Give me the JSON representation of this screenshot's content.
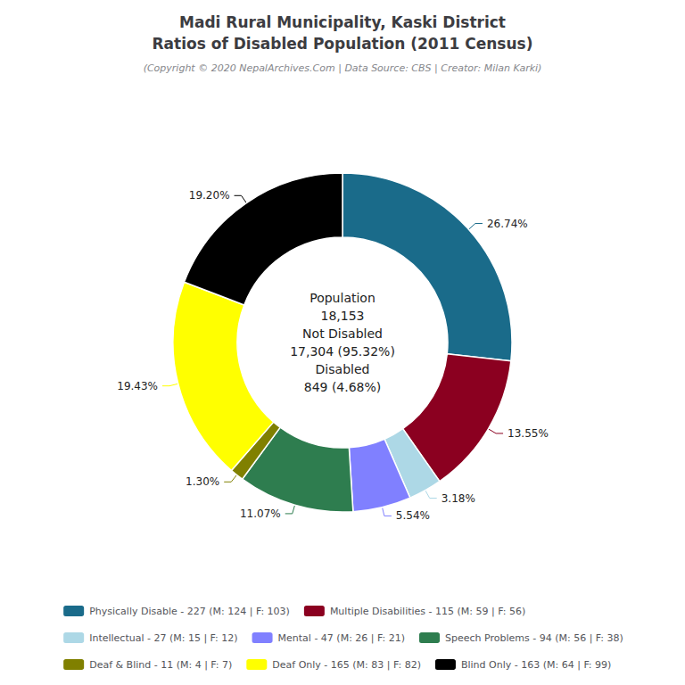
{
  "chart_data": {
    "type": "pie",
    "title": "Madi Rural Municipality, Kaski District\nRatios of Disabled Population (2011 Census)",
    "subtitle": "(Copyright © 2020 NepalArchives.Com | Data Source: CBS | Creator: Milan Karki)",
    "categories": [
      "Physically Disable - 227 (M: 124 | F: 103)",
      "Multiple Disabilities - 115 (M: 59 | F: 56)",
      "Intellectual - 27 (M: 15 | F: 12)",
      "Mental - 47 (M: 26 | F: 21)",
      "Speech Problems - 94 (M: 56 | F: 38)",
      "Deaf & Blind - 11 (M: 4 | F: 7)",
      "Deaf Only - 165 (M: 83 | F: 82)",
      "Blind Only - 163 (M: 64 | F: 99)"
    ],
    "values": [
      26.74,
      13.55,
      3.18,
      5.54,
      11.07,
      1.3,
      19.43,
      19.2
    ],
    "value_labels": [
      "26.74%",
      "13.55%",
      "3.18%",
      "5.54%",
      "11.07%",
      "1.30%",
      "19.43%",
      "19.20%"
    ],
    "colors": [
      "#1a6b8a",
      "#8b0020",
      "#add8e6",
      "#8080ff",
      "#2e7d4f",
      "#808000",
      "#ffff00",
      "#000000"
    ],
    "annotations": [
      "Population",
      "18,153",
      "Not Disabled",
      "17,304 (95.32%)",
      "Disabled",
      "849 (4.68%)"
    ],
    "data_labels": true,
    "legend": "bottom"
  }
}
